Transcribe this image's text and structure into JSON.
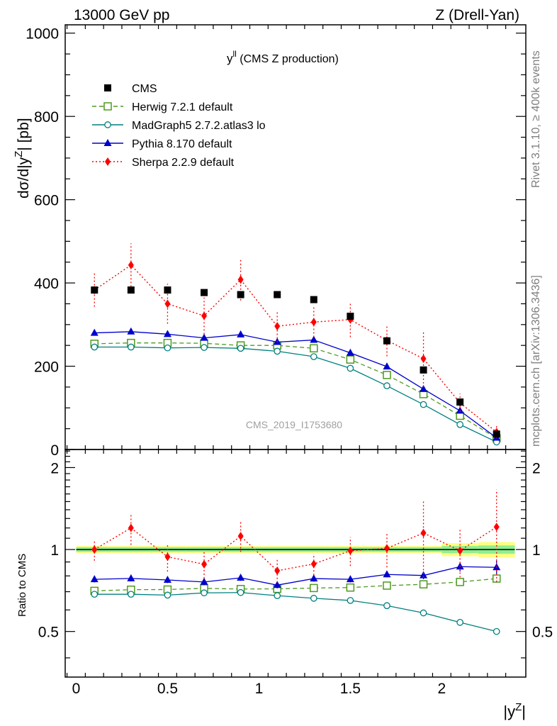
{
  "header": {
    "left": "13000 GeV pp",
    "right": "Z (Drell-Yan)"
  },
  "side_labels": {
    "rivet": "Rivet 3.1.10, ≥ 400k events",
    "mcplots": "mcplots.cern.ch [arXiv:1306.3436]"
  },
  "chart_data": {
    "type": "scatter",
    "title": "y^ll (CMS Z production)",
    "title_main": "y",
    "title_sup": "ll",
    "title_rest": " (CMS Z production)",
    "watermark": "CMS_2019_I1753680",
    "xlabel": "|y^Z|",
    "xlabel_main": "|y",
    "xlabel_sup": "Z",
    "xlabel_end": "|",
    "ylabel": "dσ/d|y^Z| [pb]",
    "ylabel_main": "dσ/d|y",
    "ylabel_sup": "Z",
    "ylabel_end": "| [pb]",
    "ratio_ylabel": "Ratio to CMS",
    "xlim": [
      -0.06,
      2.46
    ],
    "ylim": [
      0,
      1020
    ],
    "ratio_ylim": [
      0.34,
      2.33
    ],
    "x_ticks": [
      0,
      0.5,
      1,
      1.5,
      2
    ],
    "x_tick_labels": [
      "0",
      "0.5",
      "1",
      "1.5",
      "2"
    ],
    "y_ticks": [
      0,
      200,
      400,
      600,
      800,
      1000
    ],
    "y_tick_labels": [
      "0",
      "200",
      "400",
      "600",
      "800",
      "1000"
    ],
    "ratio_ticks": [
      0.5,
      1,
      2
    ],
    "ratio_tick_labels": [
      "0.5",
      "1",
      "2"
    ],
    "legend_position": "top-left",
    "x": [
      0.1,
      0.3,
      0.5,
      0.7,
      0.9,
      1.1,
      1.3,
      1.5,
      1.7,
      1.9,
      2.1,
      2.3
    ],
    "x_edges": [
      0,
      0.2,
      0.4,
      0.6,
      0.8,
      1.0,
      1.2,
      1.4,
      1.6,
      1.8,
      2.0,
      2.2,
      2.4
    ],
    "series": [
      {
        "name": "CMS",
        "color": "#000000",
        "marker": "square-filled",
        "line": "none",
        "values": [
          383,
          383,
          383,
          377,
          372,
          372,
          360,
          320,
          261,
          191,
          114,
          37
        ],
        "band_total": [
          0.03,
          0.03,
          0.03,
          0.03,
          0.03,
          0.03,
          0.03,
          0.03,
          0.03,
          0.03,
          0.055,
          0.065
        ],
        "band_stat": [
          0.02,
          0.02,
          0.02,
          0.02,
          0.02,
          0.02,
          0.02,
          0.02,
          0.02,
          0.02,
          0.03,
          0.035
        ]
      },
      {
        "name": "Herwig 7.2.1 default",
        "color": "#4d9a1f",
        "marker": "square-open",
        "line": "dashed",
        "values": [
          254,
          256,
          256,
          255,
          250,
          250,
          243,
          216,
          179,
          133,
          81,
          27
        ],
        "ratio": [
          0.705,
          0.712,
          0.713,
          0.72,
          0.716,
          0.717,
          0.722,
          0.725,
          0.737,
          0.745,
          0.76,
          0.782
        ],
        "ratio_err": [
          0.012,
          0.012,
          0.012,
          0.012,
          0.012,
          0.012,
          0.012,
          0.012,
          0.012,
          0.012,
          0.015,
          0.02
        ]
      },
      {
        "name": "MadGraph5 2.7.2.atlas3 lo",
        "color": "#00807f",
        "marker": "circle-open",
        "line": "solid",
        "values": [
          246,
          246,
          244,
          245,
          243,
          236,
          223,
          195,
          153,
          108,
          60,
          18
        ],
        "ratio": [
          0.685,
          0.685,
          0.68,
          0.693,
          0.695,
          0.677,
          0.662,
          0.65,
          0.622,
          0.585,
          0.54,
          0.5
        ],
        "ratio_err": [
          0.005,
          0.005,
          0.005,
          0.005,
          0.005,
          0.005,
          0.005,
          0.005,
          0.005,
          0.005,
          0.006,
          0.008
        ]
      },
      {
        "name": "Pythia 8.170 default",
        "color": "#0000cc",
        "marker": "triangle-filled",
        "line": "solid",
        "values": [
          280,
          283,
          277,
          268,
          276,
          258,
          263,
          232,
          199,
          145,
          93,
          28
        ],
        "ratio": [
          0.777,
          0.783,
          0.773,
          0.76,
          0.787,
          0.74,
          0.782,
          0.777,
          0.81,
          0.803,
          0.865,
          0.86
        ],
        "ratio_err": [
          0.02,
          0.02,
          0.02,
          0.02,
          0.02,
          0.02,
          0.02,
          0.02,
          0.02,
          0.025,
          0.035,
          0.05
        ]
      },
      {
        "name": "Sherpa 2.2.9 default",
        "color": "#ff0000",
        "marker": "diamond-filled",
        "line": "dotted",
        "values": [
          383,
          443,
          350,
          321,
          408,
          296,
          306,
          312,
          262,
          218,
          112,
          42
        ],
        "err": [
          40,
          52,
          48,
          44,
          50,
          38,
          36,
          42,
          38,
          68,
          22,
          15
        ],
        "ratio": [
          1.0,
          1.2,
          0.94,
          0.883,
          1.12,
          0.836,
          0.885,
          0.99,
          1.01,
          1.15,
          0.99,
          1.21
        ],
        "ratio_err": [
          0.09,
          0.16,
          0.11,
          0.1,
          0.14,
          0.08,
          0.08,
          0.12,
          0.15,
          0.36,
          0.2,
          0.45
        ]
      }
    ]
  }
}
